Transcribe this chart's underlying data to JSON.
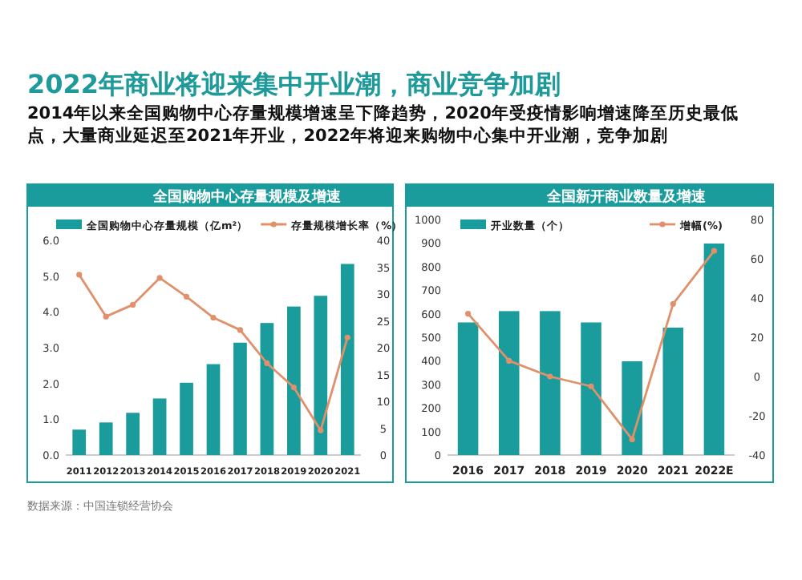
{
  "chart_data": [
    {
      "type": "bar",
      "title": "全国购物中心存量规模及增速",
      "annotations": [
        "2022年商业将迎来集中开业潮，商业竞争加剧",
        "2014年以来全国购物中心存量规模增速呈下降趋势，2020年受疫情影响增速降至历史最低点，大量商业延迟至2021年开业，2022年将迎来购物中心集中开业潮，竞争加剧",
        "数据来源：中国连锁经营协会"
      ],
      "categories": [
        "2011",
        "2012",
        "2013",
        "2014",
        "2015",
        "2016",
        "2017",
        "2018",
        "2019",
        "2020",
        "2021"
      ],
      "series": [
        {
          "name": "全国购物中心存量规模（亿m²）",
          "color": "#1b9c9c",
          "values": [
            0.71,
            0.91,
            1.18,
            1.58,
            2.02,
            2.54,
            3.14,
            3.69,
            4.15,
            4.45,
            5.34
          ]
        },
        {
          "name": "存量规模增长率（%）",
          "type": "line",
          "axis": "y2",
          "color": "#e0906a",
          "marker": "circle",
          "values": [
            33.6,
            25.8,
            28,
            33.0,
            29.5,
            25.6,
            23.3,
            17.1,
            12.6,
            4.6,
            21.9
          ]
        }
      ],
      "ylim": [
        0,
        6
      ],
      "yticks": [
        {
          "value": 0,
          "label": "0.0"
        },
        {
          "value": 1,
          "label": "1.0"
        },
        {
          "value": 2,
          "label": "2.0"
        },
        {
          "value": 3,
          "label": "3.0"
        },
        {
          "value": 4,
          "label": "4.0"
        },
        {
          "value": 5,
          "label": "5.0"
        },
        {
          "value": 6,
          "label": "6.0"
        }
      ],
      "y2lim": [
        0,
        40
      ],
      "y2ticks": [
        0,
        5,
        10,
        15,
        20,
        25,
        30,
        35,
        40
      ],
      "legend": "top",
      "grid": false
    },
    {
      "type": "bar",
      "title": "全国新开商业数量及增速",
      "categories": [
        "2016",
        "2017",
        "2018",
        "2019",
        "2020",
        "2021",
        "2022E"
      ],
      "series": [
        {
          "name": "开业数量（个）",
          "color": "#1b9c9c",
          "values": [
            563,
            611,
            611,
            563,
            398,
            541,
            898
          ]
        },
        {
          "name": "增幅(%)",
          "type": "line",
          "axis": "y2",
          "color": "#e0906a",
          "marker": "circle",
          "values": [
            32,
            8,
            0,
            -5,
            -32,
            37,
            64
          ]
        }
      ],
      "ylim": [
        0,
        1000
      ],
      "yticks": [
        0,
        100,
        200,
        300,
        400,
        500,
        600,
        700,
        800,
        900,
        1000
      ],
      "y2lim": [
        -40,
        80
      ],
      "y2ticks": [
        -40,
        -20,
        0,
        20,
        40,
        60,
        80
      ],
      "legend": "top",
      "grid": false
    }
  ]
}
